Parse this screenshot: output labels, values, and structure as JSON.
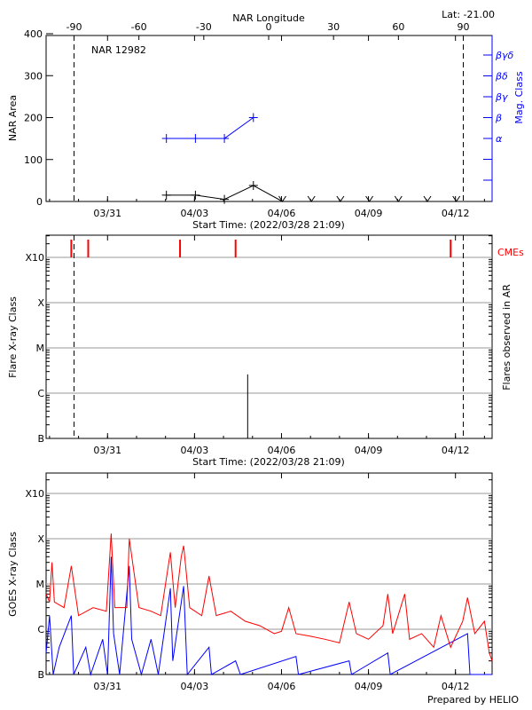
{
  "chart_data": [
    {
      "type": "line",
      "title": "NAR 12982",
      "corner_label": "Lat: -21.00",
      "top_axis_label": "NAR Longitude",
      "top_ticks": [
        "-90",
        "-60",
        "-30",
        "0",
        "30",
        "60",
        "90"
      ],
      "ylabel": "NAR Area",
      "ylim": [
        0,
        400
      ],
      "yticks": [
        "0",
        "100",
        "200",
        "300",
        "400"
      ],
      "right_axis_label": "Mag. Class",
      "right_ticks": [
        "α",
        "β",
        "βγ",
        "βδ",
        "βγδ"
      ],
      "xlabel": "Start Time: (2022/03/28 21:09)",
      "xticks": [
        "03/31",
        "04/03",
        "04/06",
        "04/09",
        "04/12"
      ],
      "limb_longitudes": [
        -90,
        90
      ],
      "series": [
        {
          "color": "#000000",
          "x": [
            "04/02",
            "04/03",
            "04/04",
            "04/05",
            "04/06",
            "04/07",
            "04/08",
            "04/09",
            "04/10",
            "04/11",
            "04/12"
          ],
          "values": [
            15,
            15,
            5,
            38,
            0,
            0,
            0,
            0,
            0,
            0,
            0
          ]
        },
        {
          "color": "#0000ff",
          "x": [
            "04/02",
            "04/03",
            "04/04",
            "04/05"
          ],
          "values": [
            "α",
            "α",
            "α",
            "β"
          ]
        }
      ]
    },
    {
      "type": "scatter",
      "ylabel": "Flare X-ray Class",
      "right_axis_label": "Flares observed in AR",
      "cme_label": "CMEs",
      "cme_color": "#ff0000",
      "yticks": [
        "B",
        "C",
        "M",
        "X",
        "X10"
      ],
      "xlabel": "Start Time: (2022/03/28 21:09)",
      "xticks": [
        "03/31",
        "04/03",
        "04/06",
        "04/09",
        "04/12"
      ],
      "grid": true,
      "cmes": [
        "2022-03-29T18:00",
        "2022-03-30T08:00",
        "2022-04-02T12:00",
        "2022-04-04T10:00",
        "2022-04-11T20:00"
      ],
      "flares": [
        {
          "time": "2022-04-04T20:00",
          "class": "C2.6"
        }
      ]
    },
    {
      "type": "line",
      "ylabel": "GOES X-ray Class",
      "yticks": [
        "B",
        "C",
        "M",
        "X",
        "X10"
      ],
      "xticks": [
        "03/31",
        "04/03",
        "04/06",
        "04/09",
        "04/12"
      ],
      "grid": true,
      "credit": "Prepared by HELIO",
      "series": [
        {
          "color": "#ff0000",
          "points": [
            [
              "2022-03-28T21:00",
              6e-06
            ],
            [
              "2022-03-29T00:00",
              4e-06
            ],
            [
              "2022-03-29T02:00",
              3e-05
            ],
            [
              "2022-03-29T04:00",
              4e-06
            ],
            [
              "2022-03-29T12:00",
              3e-06
            ],
            [
              "2022-03-29T18:00",
              2.5e-05
            ],
            [
              "2022-03-30T00:00",
              2e-06
            ],
            [
              "2022-03-30T12:00",
              3e-06
            ],
            [
              "2022-03-30T23:00",
              2.5e-06
            ],
            [
              "2022-03-31T03:00",
              0.00013
            ],
            [
              "2022-03-31T06:00",
              3e-06
            ],
            [
              "2022-03-31T16:00",
              3e-06
            ],
            [
              "2022-03-31T18:00",
              0.0001
            ],
            [
              "2022-04-01T02:00",
              3e-06
            ],
            [
              "2022-04-01T12:00",
              2.5e-06
            ],
            [
              "2022-04-01T20:00",
              2e-06
            ],
            [
              "2022-04-02T04:00",
              5e-05
            ],
            [
              "2022-04-02T08:00",
              3e-06
            ],
            [
              "2022-04-02T13:00",
              4e-05
            ],
            [
              "2022-04-02T15:00",
              7e-05
            ],
            [
              "2022-04-02T20:00",
              3e-06
            ],
            [
              "2022-04-03T06:00",
              2e-06
            ],
            [
              "2022-04-03T12:00",
              1.5e-05
            ],
            [
              "2022-04-03T18:00",
              2e-06
            ],
            [
              "2022-04-04T06:00",
              2.5e-06
            ],
            [
              "2022-04-04T18:00",
              1.5e-06
            ],
            [
              "2022-04-05T06:00",
              1.2e-06
            ],
            [
              "2022-04-05T18:00",
              8e-07
            ],
            [
              "2022-04-06T00:00",
              9e-07
            ],
            [
              "2022-04-06T06:00",
              3e-06
            ],
            [
              "2022-04-06T12:00",
              8e-07
            ],
            [
              "2022-04-07T00:00",
              7e-07
            ],
            [
              "2022-04-07T12:00",
              6e-07
            ],
            [
              "2022-04-08T00:00",
              5e-07
            ],
            [
              "2022-04-08T08:00",
              4e-06
            ],
            [
              "2022-04-08T14:00",
              8e-07
            ],
            [
              "2022-04-09T00:00",
              6e-07
            ],
            [
              "2022-04-09T12:00",
              1.2e-06
            ],
            [
              "2022-04-09T16:00",
              6e-06
            ],
            [
              "2022-04-09T20:00",
              8e-07
            ],
            [
              "2022-04-10T06:00",
              6e-06
            ],
            [
              "2022-04-10T10:00",
              6e-07
            ],
            [
              "2022-04-10T20:00",
              8e-07
            ],
            [
              "2022-04-11T06:00",
              4e-07
            ],
            [
              "2022-04-11T12:00",
              2e-06
            ],
            [
              "2022-04-11T20:00",
              4e-07
            ],
            [
              "2022-04-12T06:00",
              1.5e-06
            ],
            [
              "2022-04-12T10:00",
              5e-06
            ],
            [
              "2022-04-12T16:00",
              8e-07
            ],
            [
              "2022-04-13T00:00",
              1.5e-06
            ],
            [
              "2022-04-13T04:00",
              3e-07
            ],
            [
              "2022-04-13T08:00",
              2e-07
            ]
          ]
        },
        {
          "color": "#0000ff",
          "points": [
            [
              "2022-03-28T21:00",
              3e-07
            ],
            [
              "2022-03-29T00:00",
              2e-06
            ],
            [
              "2022-03-29T03:00",
              1e-07
            ],
            [
              "2022-03-29T08:00",
              4e-07
            ],
            [
              "2022-03-29T18:00",
              2e-06
            ],
            [
              "2022-03-29T20:00",
              1e-07
            ],
            [
              "2022-03-30T06:00",
              4e-07
            ],
            [
              "2022-03-30T10:00",
              1e-07
            ],
            [
              "2022-03-30T20:00",
              6e-07
            ],
            [
              "2022-03-31T00:00",
              1e-07
            ],
            [
              "2022-03-31T03:00",
              4e-05
            ],
            [
              "2022-03-31T05:00",
              8e-07
            ],
            [
              "2022-03-31T10:00",
              1e-07
            ],
            [
              "2022-03-31T18:00",
              2.5e-05
            ],
            [
              "2022-03-31T20:00",
              6e-07
            ],
            [
              "2022-04-01T04:00",
              1e-07
            ],
            [
              "2022-04-01T12:00",
              6e-07
            ],
            [
              "2022-04-01T18:00",
              1e-07
            ],
            [
              "2022-04-02T04:00",
              8e-06
            ],
            [
              "2022-04-02T06:00",
              2e-07
            ],
            [
              "2022-04-02T15:00",
              9e-06
            ],
            [
              "2022-04-02T18:00",
              1e-07
            ],
            [
              "2022-04-03T12:00",
              4e-07
            ],
            [
              "2022-04-03T14:00",
              1e-07
            ],
            [
              "2022-04-04T10:00",
              2e-07
            ],
            [
              "2022-04-04T14:00",
              1e-07
            ],
            [
              "2022-04-06T12:00",
              2.5e-07
            ],
            [
              "2022-04-06T14:00",
              1e-07
            ],
            [
              "2022-04-08T08:00",
              2e-07
            ],
            [
              "2022-04-08T10:00",
              1e-07
            ],
            [
              "2022-04-09T16:00",
              3e-07
            ],
            [
              "2022-04-09T18:00",
              1e-07
            ],
            [
              "2022-04-12T10:00",
              8e-07
            ],
            [
              "2022-04-12T12:00",
              1e-07
            ],
            [
              "2022-04-13T08:00",
              1e-07
            ]
          ]
        }
      ]
    }
  ]
}
